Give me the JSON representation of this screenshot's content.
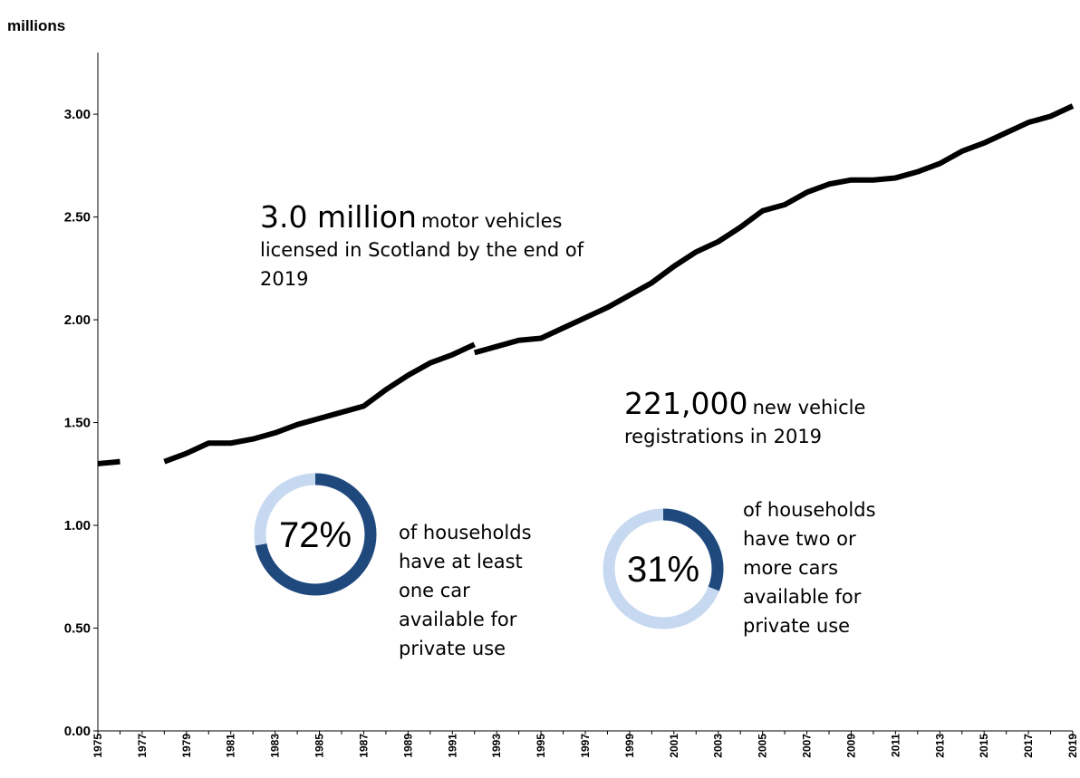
{
  "chart_data": {
    "type": "line",
    "unit_label": "millions",
    "y_ticks": [
      "0.00",
      "0.50",
      "1.00",
      "1.50",
      "2.00",
      "2.50",
      "3.00"
    ],
    "ylim": [
      0,
      3.3
    ],
    "x_tick_labels": [
      "1975",
      "1977",
      "1979",
      "1981",
      "1983",
      "1985",
      "1987",
      "1989",
      "1991",
      "1993",
      "1995",
      "1997",
      "1999",
      "2001",
      "2003",
      "2005",
      "2007",
      "2009",
      "2011",
      "2013",
      "2015",
      "2017",
      "2019"
    ],
    "xlim": [
      1975,
      2019
    ],
    "grid": false,
    "series": [
      {
        "segments": [
          {
            "x": [
              1975,
              1976
            ],
            "y": [
              1.3,
              1.31
            ]
          },
          {
            "x": [
              1978,
              1979,
              1980,
              1981,
              1982,
              1983,
              1984,
              1985,
              1986,
              1987,
              1988,
              1989,
              1990,
              1991,
              1992
            ],
            "y": [
              1.31,
              1.35,
              1.4,
              1.4,
              1.42,
              1.45,
              1.49,
              1.52,
              1.55,
              1.58,
              1.66,
              1.73,
              1.79,
              1.83,
              1.88
            ]
          },
          {
            "x": [
              1992,
              1993,
              1994,
              1995,
              1996,
              1997,
              1998,
              1999,
              2000,
              2001,
              2002,
              2003,
              2004,
              2005,
              2006,
              2007,
              2008,
              2009,
              2010,
              2011,
              2012,
              2013,
              2014,
              2015,
              2016,
              2017,
              2018,
              2019
            ],
            "y": [
              1.84,
              1.87,
              1.9,
              1.91,
              1.96,
              2.01,
              2.06,
              2.12,
              2.18,
              2.26,
              2.33,
              2.38,
              2.45,
              2.53,
              2.56,
              2.62,
              2.66,
              2.68,
              2.68,
              2.69,
              2.72,
              2.76,
              2.82,
              2.86,
              2.91,
              2.96,
              2.99,
              3.04
            ]
          }
        ]
      }
    ],
    "annotations": {
      "vehicles_big": "3.0 million",
      "vehicles_small": "motor vehicles licensed in Scotland by the end of 2019",
      "registrations_big": "221,000",
      "registrations_small": "new vehicle registrations in 2019"
    },
    "donuts": [
      {
        "percent_label": "72%",
        "value": 72,
        "caption": "of households have at least one car available for private use"
      },
      {
        "percent_label": "31%",
        "value": 31,
        "caption": "of households have two or more cars available for private use"
      }
    ],
    "colors": {
      "line": "#000000",
      "donut_fill": "#1f497d",
      "donut_track": "#c6d9f0"
    }
  }
}
